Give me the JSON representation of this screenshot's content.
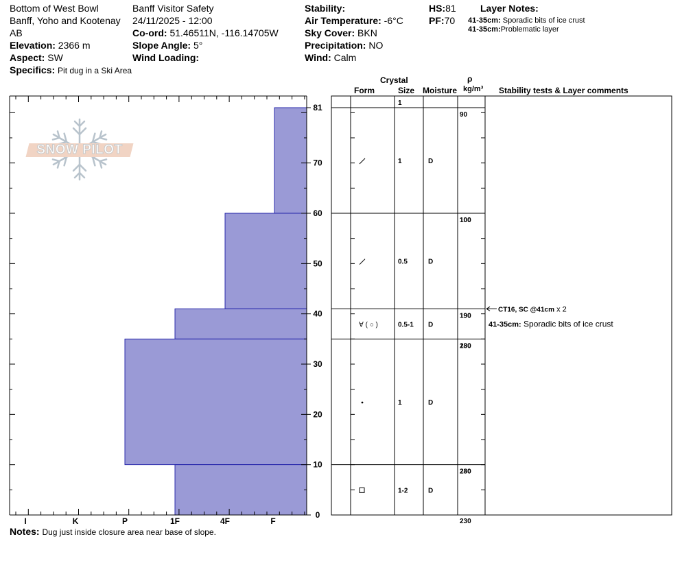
{
  "header": {
    "location": "Bottom of West Bowl",
    "region": "Banff, Yoho and Kootenay",
    "state": "AB",
    "elevation_label": "Elevation:",
    "elevation": "2366 m",
    "aspect_label": "Aspect:",
    "aspect": "SW",
    "specifics_label": "Specifics:",
    "specifics": "Pit dug in a Ski Area",
    "observer": "Banff  Visitor Safety",
    "datetime": "24/11/2025 - 12:00",
    "coord_label": "Co-ord:",
    "coord": "51.46511N, -116.14705W",
    "slope_label": "Slope Angle:",
    "slope": "5°",
    "wind_loading_label": "Wind Loading:",
    "wind_loading": "",
    "stability_label": "Stability:",
    "stability": "",
    "air_temp_label": "Air Temperature:",
    "air_temp": "-6°C",
    "sky_label": "Sky Cover:",
    "sky": "BKN",
    "precip_label": "Precipitation:",
    "precip": "NO",
    "wind_label": "Wind:",
    "wind": "Calm",
    "hs_label": "HS:",
    "hs": "81",
    "pf_label": "PF:",
    "pf": "70",
    "layer_notes_title": "Layer Notes:",
    "layer_notes": [
      {
        "range": "41-35cm:",
        "text": "Sporadic bits of ice crust"
      },
      {
        "range": "41-35cm:",
        "text": "Problematic layer"
      }
    ]
  },
  "columns": {
    "crystal": "Crystal",
    "form": "Form",
    "size": "Size",
    "moisture": "Moisture",
    "rho": "ρ",
    "density_unit": "kg/m³",
    "stability_comments": "Stability tests & Layer comments"
  },
  "logo_text": "SNOW PILOT",
  "notes_label": "Notes:",
  "notes": "Dug just inside closure area near base of slope.",
  "chart_data": {
    "type": "bar",
    "orientation": "horizontal",
    "title": "",
    "ylabel": "",
    "ylim": [
      0,
      81
    ],
    "y_ticks": [
      0,
      10,
      20,
      30,
      40,
      50,
      60,
      70,
      81
    ],
    "hardness_labels": [
      "I",
      "K",
      "P",
      "1F",
      "4F",
      "F"
    ],
    "layers": [
      {
        "top": 81,
        "bottom": 60,
        "hardness": "F",
        "form": "/",
        "size": "1",
        "moisture": "D"
      },
      {
        "top": 60,
        "bottom": 41,
        "hardness": "4F",
        "form": "/",
        "size": "0.5",
        "moisture": "D"
      },
      {
        "top": 41,
        "bottom": 35,
        "hardness": "1F",
        "form": "∀ ( ○ )",
        "size": "0.5-1",
        "moisture": "D"
      },
      {
        "top": 35,
        "bottom": 10,
        "hardness": "P",
        "form": "•",
        "size": "1",
        "moisture": "D"
      },
      {
        "top": 10,
        "bottom": 0,
        "hardness": "1F",
        "form": "□",
        "size": "1-2",
        "moisture": "D"
      }
    ],
    "top_size": "1",
    "densities": [
      {
        "label": "90",
        "y": 81
      },
      {
        "label": "100",
        "y": 60
      },
      {
        "label": "100",
        "y": 60
      },
      {
        "label": "190",
        "y": 41
      },
      {
        "label": "190",
        "y": 41
      },
      {
        "label": "180",
        "y": 35
      },
      {
        "label": "230",
        "y": 35
      },
      {
        "label": "280",
        "y": 10
      },
      {
        "label": "230",
        "y": 10
      },
      {
        "label": "230",
        "y": 0
      }
    ],
    "stability_test": {
      "label": "CT16, SC @41cm",
      "multiplier": "x 2",
      "depth": 41
    },
    "layer_comment": {
      "range": "41-35cm:",
      "text": "Sporadic bits of ice crust",
      "depth": 38
    }
  }
}
